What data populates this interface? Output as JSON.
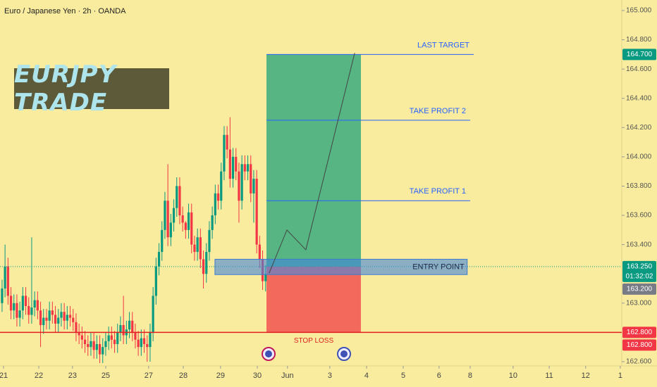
{
  "header": {
    "title": "Euro / Japanese Yen · 2h · OANDA"
  },
  "overlay_label": "EURJPY TRADE",
  "chart_data": {
    "type": "candlestick",
    "open": [
      163.0,
      163.1,
      163.25,
      163.05,
      162.95,
      163.0,
      162.9,
      162.95,
      163.05,
      162.98,
      162.92,
      162.97,
      163.02,
      162.95,
      162.85,
      162.9,
      162.88,
      162.95,
      162.92,
      162.86,
      162.9,
      162.94,
      162.88,
      162.92,
      162.9,
      162.87,
      162.8,
      162.78,
      162.75,
      162.72,
      162.7,
      162.74,
      162.68,
      162.72,
      162.65,
      162.7,
      162.74,
      162.78,
      162.75,
      162.72,
      162.8,
      162.85,
      162.78,
      162.82,
      162.88,
      162.8,
      162.75,
      162.7,
      162.76,
      162.72,
      162.7,
      162.8,
      163.05,
      163.25,
      163.35,
      163.5,
      163.7,
      163.45,
      163.55,
      163.65,
      163.8,
      163.6,
      163.55,
      163.5,
      163.62,
      163.4,
      163.35,
      163.45,
      163.3,
      163.2,
      163.35,
      163.5,
      163.6,
      163.75,
      163.7,
      163.9,
      164.15,
      164.05,
      163.85,
      164.0,
      163.9,
      163.7,
      163.95,
      163.9,
      163.95,
      163.75,
      163.85,
      163.4,
      163.3,
      163.15
    ],
    "high": [
      163.16,
      163.4,
      163.31,
      163.11,
      163.06,
      163.06,
      163.01,
      163.11,
      163.11,
      163.04,
      163.45,
      163.08,
      163.08,
      163.01,
      162.96,
      162.96,
      163.01,
      163.01,
      162.98,
      162.96,
      163.0,
      163.0,
      162.98,
      162.98,
      162.96,
      162.93,
      162.86,
      162.84,
      162.81,
      162.78,
      162.8,
      162.8,
      162.78,
      162.78,
      162.76,
      162.8,
      162.84,
      162.84,
      162.81,
      162.86,
      162.91,
      163.05,
      162.88,
      162.94,
      162.94,
      162.86,
      162.81,
      162.82,
      162.82,
      162.78,
      162.86,
      163.11,
      163.31,
      163.41,
      163.56,
      163.76,
      163.95,
      163.61,
      163.71,
      163.86,
      163.86,
      163.66,
      163.56,
      163.68,
      163.68,
      163.46,
      163.51,
      163.51,
      163.36,
      163.41,
      163.56,
      163.66,
      163.81,
      163.81,
      163.96,
      164.21,
      164.21,
      164.27,
      164.06,
      164.06,
      163.96,
      164.01,
      164.01,
      164.01,
      164.01,
      163.91,
      163.91,
      163.46,
      163.36,
      163.26
    ],
    "low": [
      162.94,
      163.04,
      162.99,
      162.89,
      162.89,
      162.84,
      162.84,
      162.89,
      162.92,
      162.86,
      162.86,
      162.91,
      162.89,
      162.7,
      162.79,
      162.82,
      162.82,
      162.86,
      162.8,
      162.8,
      162.84,
      162.82,
      162.82,
      162.84,
      162.81,
      162.74,
      162.72,
      162.69,
      162.66,
      162.64,
      162.64,
      162.62,
      162.62,
      162.59,
      162.59,
      162.64,
      162.68,
      162.69,
      162.66,
      162.66,
      162.74,
      162.72,
      162.72,
      162.76,
      162.74,
      162.69,
      162.64,
      162.64,
      162.66,
      162.6,
      162.6,
      162.74,
      162.99,
      163.19,
      163.29,
      163.44,
      163.39,
      163.39,
      163.49,
      163.59,
      163.54,
      163.49,
      163.44,
      163.44,
      163.34,
      163.29,
      163.29,
      163.24,
      163.1,
      163.14,
      163.29,
      163.44,
      163.54,
      163.64,
      163.64,
      163.84,
      163.99,
      163.79,
      163.79,
      163.84,
      163.55,
      163.64,
      163.84,
      163.84,
      163.69,
      163.55,
      163.34,
      163.24,
      163.09,
      163.08
    ],
    "close": [
      163.1,
      163.25,
      163.05,
      162.95,
      163.0,
      162.9,
      162.95,
      163.05,
      162.98,
      162.92,
      162.97,
      163.02,
      162.95,
      162.85,
      162.9,
      162.88,
      162.95,
      162.92,
      162.86,
      162.9,
      162.94,
      162.88,
      162.92,
      162.9,
      162.87,
      162.8,
      162.78,
      162.75,
      162.72,
      162.7,
      162.74,
      162.68,
      162.72,
      162.65,
      162.7,
      162.74,
      162.78,
      162.75,
      162.72,
      162.8,
      162.85,
      162.78,
      162.82,
      162.88,
      162.8,
      162.75,
      162.7,
      162.76,
      162.72,
      162.7,
      162.8,
      163.05,
      163.25,
      163.35,
      163.5,
      163.7,
      163.45,
      163.55,
      163.65,
      163.8,
      163.6,
      163.55,
      163.5,
      163.62,
      163.4,
      163.35,
      163.45,
      163.3,
      163.2,
      163.35,
      163.5,
      163.6,
      163.75,
      163.7,
      163.9,
      164.15,
      164.05,
      163.85,
      164.0,
      163.9,
      163.7,
      163.95,
      163.9,
      163.95,
      163.75,
      163.85,
      163.4,
      163.3,
      163.15,
      163.2
    ],
    "colors": {
      "up": "#089981",
      "down": "#f23645"
    },
    "xlim": [
      -0.7,
      209.3
    ],
    "xticks": [
      {
        "value": 0.5,
        "label": "21"
      },
      {
        "value": 12.4,
        "label": "22"
      },
      {
        "value": 23.8,
        "label": "23"
      },
      {
        "value": 35,
        "label": "25"
      },
      {
        "value": 49.5,
        "label": "27"
      },
      {
        "value": 61.2,
        "label": "28"
      },
      {
        "value": 73.8,
        "label": "29"
      },
      {
        "value": 86.2,
        "label": "30"
      },
      {
        "value": 96.4,
        "label": "Jun"
      },
      {
        "value": 110.7,
        "label": "3"
      },
      {
        "value": 123.1,
        "label": "4"
      },
      {
        "value": 135.5,
        "label": "5"
      },
      {
        "value": 147.6,
        "label": "6"
      },
      {
        "value": 158.1,
        "label": "8"
      },
      {
        "value": 172.6,
        "label": "10"
      },
      {
        "value": 184.8,
        "label": "11"
      },
      {
        "value": 197.1,
        "label": "12"
      },
      {
        "value": 208.8,
        "label": "1"
      }
    ],
    "ylim": [
      162.571,
      165.072
    ],
    "yticks": [
      {
        "value": 165,
        "label": "165.000"
      },
      {
        "value": 164.8,
        "label": "164.800"
      },
      {
        "value": 164.6,
        "label": "164.600"
      },
      {
        "value": 164.4,
        "label": "164.400"
      },
      {
        "value": 164.2,
        "label": "164.200"
      },
      {
        "value": 164,
        "label": "164.000"
      },
      {
        "value": 163.8,
        "label": "163.800"
      },
      {
        "value": 163.6,
        "label": "163.600"
      },
      {
        "value": 163.4,
        "label": "163.400"
      },
      {
        "value": 163,
        "label": "163.000"
      },
      {
        "value": 162.6,
        "label": "162.600"
      }
    ],
    "position": {
      "entry": 163.25,
      "target": 164.7,
      "stop": 162.8,
      "start": 89.3,
      "end": 121.2,
      "profit_color": "#56b583",
      "loss_color": "#f36a5c"
    },
    "levels": [
      {
        "label": "LAST TARGET",
        "value": 164.7,
        "end": 159.3
      },
      {
        "label": "TAKE PROFIT 2",
        "value": 164.25,
        "end": 158.1
      },
      {
        "label": "TAKE PROFIT 1",
        "value": 163.7,
        "end": 158.1
      }
    ],
    "entry_zone": {
      "label": "ENTRY POINT",
      "low": 163.195,
      "high": 163.3,
      "start": 71.9,
      "end": 157.1
    },
    "stop_line": {
      "label": "STOP LOSS",
      "value": 162.8
    },
    "path": {
      "x": [
        90.2,
        96.2,
        102.6,
        119.1
      ],
      "y": [
        163.205,
        163.5,
        163.365,
        164.71
      ]
    },
    "current_price": 163.25,
    "price_tags": [
      {
        "label": "164.700",
        "value": 164.7,
        "color": "#089981"
      },
      {
        "label": "163.250",
        "sub": "01:32:02",
        "value": 163.25,
        "color": "#089981"
      },
      {
        "label": "163.200",
        "value": 163.2,
        "color": "#787b86"
      },
      {
        "label": "162.800",
        "value": 162.8,
        "color": "#f23645"
      },
      {
        "label": "162.800",
        "value": 162.8,
        "color": "#f23645"
      }
    ]
  }
}
